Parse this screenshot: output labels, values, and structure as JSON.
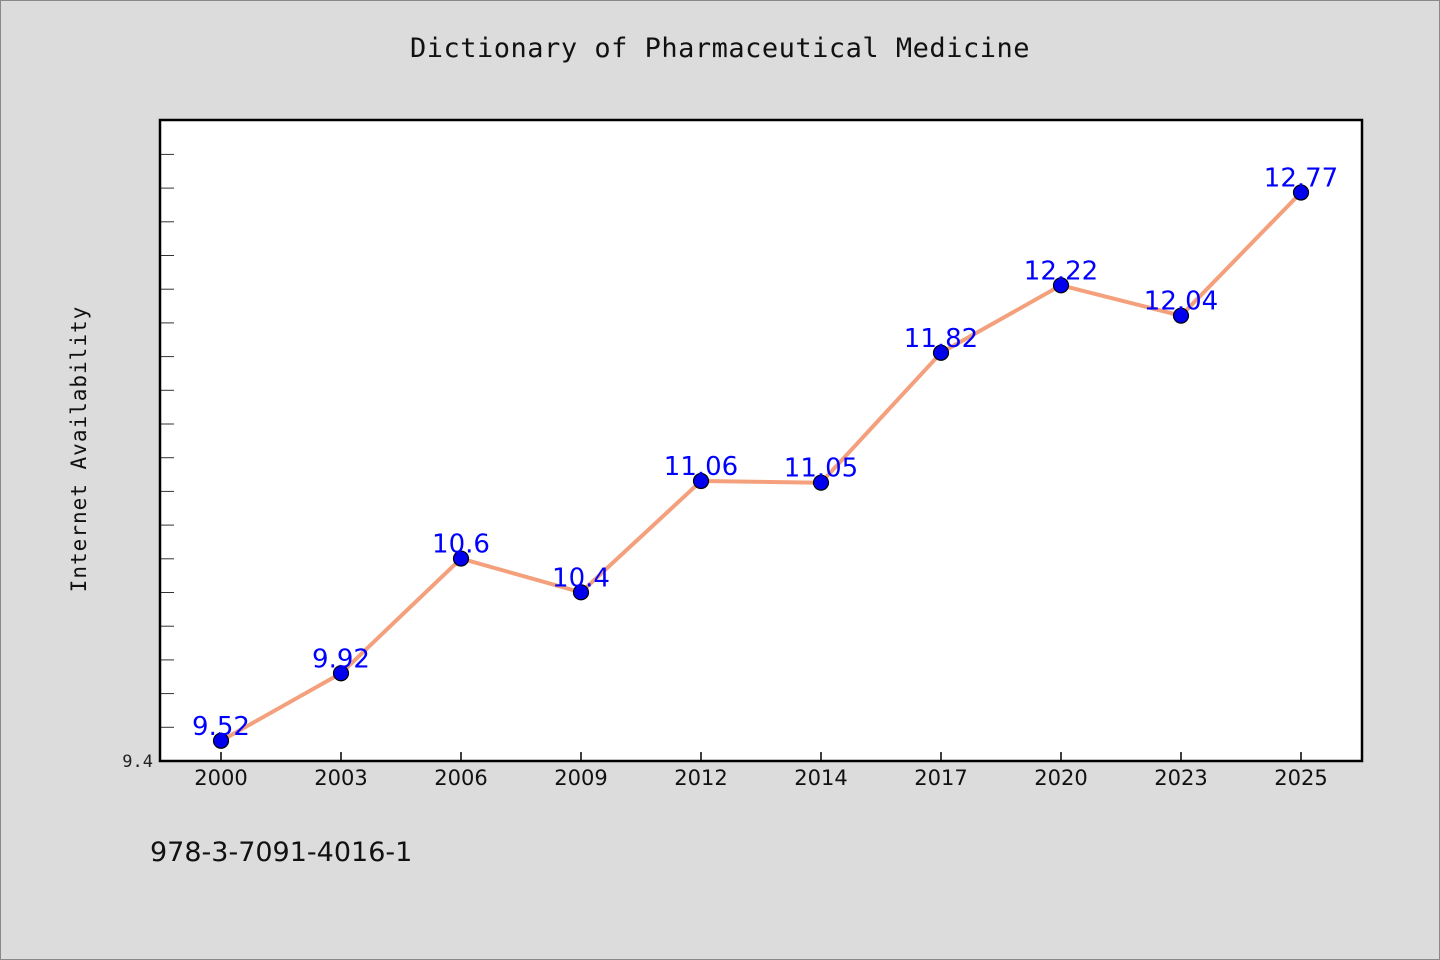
{
  "chart_data": {
    "type": "line",
    "title": "Dictionary of Pharmaceutical Medicine",
    "ylabel": "Internet Availability",
    "xlabel": "",
    "footer": "978-3-7091-4016-1",
    "categories": [
      "2000",
      "2003",
      "2006",
      "2009",
      "2012",
      "2014",
      "2017",
      "2020",
      "2023",
      "2025"
    ],
    "series": [
      {
        "values": [
          9.52,
          9.92,
          10.6,
          10.4,
          11.06,
          11.05,
          11.82,
          12.22,
          12.04,
          12.77
        ]
      }
    ],
    "data_labels": [
      "9.52",
      "9.92",
      "10.6",
      "10.4",
      "11.06",
      "11.05",
      "11.82",
      "12.22",
      "12.04",
      "12.77"
    ],
    "y_tick_label": "9.4",
    "ylim": [
      9.4,
      13.2
    ],
    "grid": false,
    "line_color": "#f4a07c",
    "marker_color": "#0000ee",
    "label_color": "#0000ff"
  }
}
